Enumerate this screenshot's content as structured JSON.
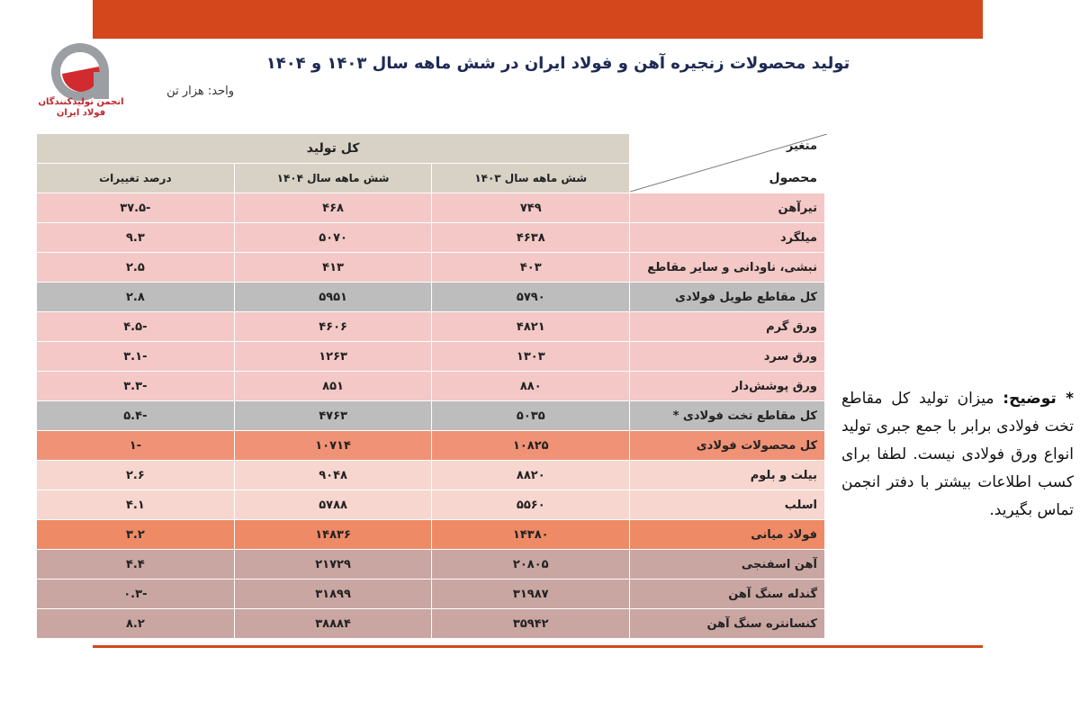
{
  "header": {
    "title": "تولید محصولات زنجیره آهن و فولاد ایران در شش ماهه سال ۱۴۰۳ و ۱۴۰۴",
    "unit": "واحد: هزار تن",
    "logo_text": "انجمن تولیدکنندگان فولاد ایران"
  },
  "table": {
    "corner_top": "متغیر",
    "corner_bottom": "محصول",
    "group": "کل تولید",
    "columns": [
      "شش ماهه سال ۱۴۰۳",
      "شش ماهه سال ۱۴۰۴",
      "درصد تغییرات"
    ],
    "rows": [
      [
        "تیرآهن",
        "۷۴۹",
        "۴۶۸",
        "-۳۷.۵"
      ],
      [
        "میلگرد",
        "۴۶۳۸",
        "۵۰۷۰",
        "۹.۳"
      ],
      [
        "نبشی، ناودانی و سایر مقاطع",
        "۴۰۳",
        "۴۱۳",
        "۲.۵"
      ],
      [
        "کل مقاطع طویل فولادی",
        "۵۷۹۰",
        "۵۹۵۱",
        "۲.۸"
      ],
      [
        "ورق گرم",
        "۴۸۲۱",
        "۴۶۰۶",
        "-۴.۵"
      ],
      [
        "ورق سرد",
        "۱۳۰۳",
        "۱۲۶۳",
        "-۳.۱"
      ],
      [
        "ورق پوشش‌دار",
        "۸۸۰",
        "۸۵۱",
        "-۳.۳"
      ],
      [
        "کل مقاطع تخت فولادی *",
        "۵۰۳۵",
        "۴۷۶۳",
        "-۵.۴"
      ],
      [
        "کل محصولات فولادی",
        "۱۰۸۲۵",
        "۱۰۷۱۴",
        "-۱"
      ],
      [
        "بیلت و بلوم",
        "۸۸۲۰",
        "۹۰۴۸",
        "۲.۶"
      ],
      [
        "اسلب",
        "۵۵۶۰",
        "۵۷۸۸",
        "۴.۱"
      ],
      [
        "فولاد میانی",
        "۱۴۳۸۰",
        "۱۴۸۳۶",
        "۳.۲"
      ],
      [
        "آهن اسفنجی",
        "۲۰۸۰۵",
        "۲۱۷۲۹",
        "۴.۴"
      ],
      [
        "گندله سنگ آهن",
        "۳۱۹۸۷",
        "۳۱۸۹۹",
        "-۰.۳"
      ],
      [
        "کنسانتره سنگ آهن",
        "۳۵۹۴۲",
        "۳۸۸۸۴",
        "۸.۲"
      ]
    ]
  },
  "note": {
    "label": "* توضیح:",
    "text": "میزان تولید کل مقاطع تخت فولادی برابر با جمع جبری تولید انواع ورق فولادی نیست. لطفا برای کسب اطلاعات بیشتر با دفتر انجمن تماس بگیرید."
  }
}
